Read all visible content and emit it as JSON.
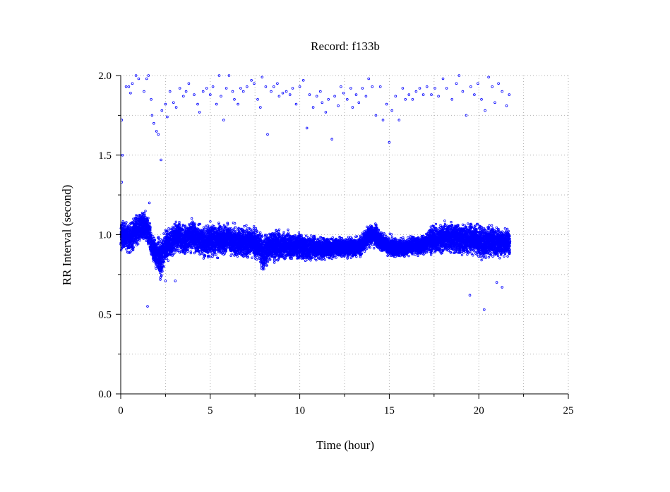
{
  "chart_data": {
    "type": "scatter",
    "title": "Record:  f133b",
    "xlabel": "Time (hour)",
    "ylabel": "RR Interval (second)",
    "xlim": [
      0,
      25
    ],
    "ylim": [
      0.0,
      2.0
    ],
    "x_ticks": [
      0,
      5,
      10,
      15,
      20,
      25
    ],
    "x_tick_labels": [
      "0",
      "5",
      "10",
      "15",
      "20",
      "25"
    ],
    "y_ticks": [
      0.0,
      0.5,
      1.0,
      1.5,
      2.0
    ],
    "y_tick_labels": [
      "0.0",
      "0.5",
      "1.0",
      "1.5",
      "2.0"
    ],
    "grid": true,
    "colors": {
      "marker": "#0000ff",
      "grid": "#b0b0b0",
      "axis": "#000000"
    },
    "series": [
      {
        "outliers": [
          [
            0.05,
            1.72
          ],
          [
            0.1,
            1.5
          ],
          [
            0.05,
            1.33
          ],
          [
            0.3,
            1.93
          ],
          [
            0.45,
            1.93
          ],
          [
            0.55,
            1.89
          ],
          [
            0.65,
            1.95
          ],
          [
            0.85,
            2.0
          ],
          [
            1.0,
            1.98
          ],
          [
            1.3,
            1.9
          ],
          [
            1.45,
            1.98
          ],
          [
            1.55,
            2.0
          ],
          [
            1.7,
            1.85
          ],
          [
            1.75,
            1.75
          ],
          [
            1.85,
            1.7
          ],
          [
            2.0,
            1.65
          ],
          [
            2.1,
            1.63
          ],
          [
            2.25,
            1.47
          ],
          [
            2.3,
            1.78
          ],
          [
            2.5,
            1.82
          ],
          [
            2.6,
            1.74
          ],
          [
            2.75,
            1.9
          ],
          [
            2.95,
            1.83
          ],
          [
            3.1,
            1.8
          ],
          [
            3.3,
            1.92
          ],
          [
            3.5,
            1.87
          ],
          [
            3.65,
            1.9
          ],
          [
            3.8,
            1.95
          ],
          [
            4.1,
            1.88
          ],
          [
            4.3,
            1.82
          ],
          [
            4.4,
            1.77
          ],
          [
            4.6,
            1.9
          ],
          [
            4.8,
            1.92
          ],
          [
            5.0,
            1.88
          ],
          [
            5.15,
            1.93
          ],
          [
            5.35,
            1.82
          ],
          [
            5.5,
            2.0
          ],
          [
            5.6,
            1.87
          ],
          [
            5.75,
            1.72
          ],
          [
            5.9,
            1.92
          ],
          [
            6.05,
            2.0
          ],
          [
            6.25,
            1.9
          ],
          [
            6.35,
            1.85
          ],
          [
            6.55,
            1.82
          ],
          [
            6.7,
            1.92
          ],
          [
            6.85,
            1.9
          ],
          [
            7.05,
            1.93
          ],
          [
            7.3,
            1.97
          ],
          [
            7.45,
            1.95
          ],
          [
            7.65,
            1.85
          ],
          [
            7.8,
            1.8
          ],
          [
            7.9,
            1.99
          ],
          [
            8.1,
            1.93
          ],
          [
            8.2,
            1.63
          ],
          [
            8.4,
            1.9
          ],
          [
            8.55,
            1.93
          ],
          [
            8.75,
            1.95
          ],
          [
            8.85,
            1.87
          ],
          [
            9.05,
            1.89
          ],
          [
            9.25,
            1.9
          ],
          [
            9.45,
            1.88
          ],
          [
            9.6,
            1.92
          ],
          [
            9.8,
            1.82
          ],
          [
            10.0,
            1.93
          ],
          [
            10.2,
            1.97
          ],
          [
            10.4,
            1.67
          ],
          [
            10.55,
            1.88
          ],
          [
            10.75,
            1.8
          ],
          [
            10.95,
            1.87
          ],
          [
            11.15,
            1.9
          ],
          [
            11.25,
            1.83
          ],
          [
            11.45,
            1.77
          ],
          [
            11.6,
            1.85
          ],
          [
            11.8,
            1.6
          ],
          [
            11.95,
            1.87
          ],
          [
            12.15,
            1.81
          ],
          [
            12.3,
            1.93
          ],
          [
            12.45,
            1.89
          ],
          [
            12.65,
            1.85
          ],
          [
            12.85,
            1.92
          ],
          [
            12.95,
            1.8
          ],
          [
            13.15,
            1.88
          ],
          [
            13.3,
            1.83
          ],
          [
            13.5,
            1.92
          ],
          [
            13.7,
            1.87
          ],
          [
            13.85,
            1.98
          ],
          [
            14.05,
            1.93
          ],
          [
            14.25,
            1.75
          ],
          [
            14.5,
            1.93
          ],
          [
            14.65,
            1.72
          ],
          [
            14.85,
            1.82
          ],
          [
            15.0,
            1.58
          ],
          [
            15.15,
            1.78
          ],
          [
            15.35,
            1.87
          ],
          [
            15.55,
            1.72
          ],
          [
            15.75,
            1.92
          ],
          [
            15.9,
            1.85
          ],
          [
            16.1,
            1.88
          ],
          [
            16.3,
            1.85
          ],
          [
            16.5,
            1.9
          ],
          [
            16.7,
            1.92
          ],
          [
            16.9,
            1.88
          ],
          [
            17.1,
            1.93
          ],
          [
            17.35,
            1.88
          ],
          [
            17.55,
            1.92
          ],
          [
            17.75,
            1.87
          ],
          [
            18.0,
            1.98
          ],
          [
            18.2,
            1.92
          ],
          [
            18.5,
            1.85
          ],
          [
            18.75,
            1.95
          ],
          [
            18.9,
            2.0
          ],
          [
            19.1,
            1.9
          ],
          [
            19.3,
            1.75
          ],
          [
            19.55,
            1.93
          ],
          [
            19.75,
            1.88
          ],
          [
            19.95,
            1.95
          ],
          [
            20.15,
            1.85
          ],
          [
            20.35,
            1.78
          ],
          [
            20.55,
            1.99
          ],
          [
            20.75,
            1.93
          ],
          [
            20.9,
            1.83
          ],
          [
            21.1,
            1.95
          ],
          [
            21.3,
            1.9
          ],
          [
            21.55,
            1.81
          ],
          [
            21.7,
            1.88
          ],
          [
            1.6,
            1.2
          ],
          [
            2.5,
            0.71
          ],
          [
            3.05,
            0.71
          ],
          [
            1.5,
            0.55
          ],
          [
            19.5,
            0.62
          ],
          [
            20.3,
            0.53
          ],
          [
            21.0,
            0.7
          ],
          [
            21.3,
            0.67
          ]
        ],
        "band": [
          [
            0.0,
            0.99,
            0.12
          ],
          [
            0.25,
            1.0,
            0.1
          ],
          [
            0.5,
            0.98,
            0.13
          ],
          [
            0.75,
            1.01,
            0.12
          ],
          [
            1.0,
            1.03,
            0.12
          ],
          [
            1.25,
            1.05,
            0.12
          ],
          [
            1.5,
            1.04,
            0.12
          ],
          [
            1.75,
            0.92,
            0.1
          ],
          [
            2.0,
            0.88,
            0.14
          ],
          [
            2.25,
            0.85,
            0.16
          ],
          [
            2.5,
            0.93,
            0.12
          ],
          [
            2.75,
            0.95,
            0.12
          ],
          [
            3.0,
            0.97,
            0.12
          ],
          [
            3.25,
            0.99,
            0.12
          ],
          [
            3.5,
            0.96,
            0.12
          ],
          [
            3.75,
            0.98,
            0.12
          ],
          [
            4.0,
            1.0,
            0.13
          ],
          [
            4.25,
            0.97,
            0.12
          ],
          [
            4.5,
            0.96,
            0.12
          ],
          [
            4.75,
            0.95,
            0.12
          ],
          [
            5.0,
            0.97,
            0.13
          ],
          [
            5.25,
            0.96,
            0.12
          ],
          [
            5.5,
            0.97,
            0.12
          ],
          [
            5.75,
            0.96,
            0.12
          ],
          [
            6.0,
            0.98,
            0.12
          ],
          [
            6.25,
            0.96,
            0.12
          ],
          [
            6.5,
            0.95,
            0.12
          ],
          [
            6.75,
            0.96,
            0.12
          ],
          [
            7.0,
            0.95,
            0.12
          ],
          [
            7.25,
            0.96,
            0.12
          ],
          [
            7.5,
            0.94,
            0.12
          ],
          [
            7.75,
            0.92,
            0.12
          ],
          [
            8.0,
            0.88,
            0.14
          ],
          [
            8.25,
            0.92,
            0.12
          ],
          [
            8.5,
            0.94,
            0.12
          ],
          [
            8.75,
            0.93,
            0.12
          ],
          [
            9.0,
            0.93,
            0.11
          ],
          [
            9.25,
            0.94,
            0.11
          ],
          [
            9.5,
            0.92,
            0.11
          ],
          [
            9.75,
            0.93,
            0.1
          ],
          [
            10.0,
            0.93,
            0.1
          ],
          [
            10.25,
            0.92,
            0.1
          ],
          [
            10.5,
            0.91,
            0.1
          ],
          [
            10.75,
            0.92,
            0.09
          ],
          [
            11.0,
            0.92,
            0.09
          ],
          [
            11.25,
            0.91,
            0.09
          ],
          [
            11.5,
            0.92,
            0.08
          ],
          [
            11.75,
            0.91,
            0.08
          ],
          [
            12.0,
            0.92,
            0.08
          ],
          [
            12.25,
            0.92,
            0.08
          ],
          [
            12.5,
            0.92,
            0.08
          ],
          [
            12.75,
            0.92,
            0.08
          ],
          [
            13.0,
            0.92,
            0.08
          ],
          [
            13.25,
            0.92,
            0.08
          ],
          [
            13.5,
            0.94,
            0.08
          ],
          [
            13.75,
            0.98,
            0.08
          ],
          [
            14.0,
            1.0,
            0.08
          ],
          [
            14.25,
            0.99,
            0.09
          ],
          [
            14.5,
            0.96,
            0.08
          ],
          [
            14.75,
            0.94,
            0.08
          ],
          [
            15.0,
            0.93,
            0.08
          ],
          [
            15.25,
            0.92,
            0.08
          ],
          [
            15.5,
            0.92,
            0.07
          ],
          [
            15.75,
            0.92,
            0.07
          ],
          [
            16.0,
            0.92,
            0.07
          ],
          [
            16.25,
            0.93,
            0.07
          ],
          [
            16.5,
            0.93,
            0.07
          ],
          [
            16.75,
            0.93,
            0.07
          ],
          [
            17.0,
            0.94,
            0.08
          ],
          [
            17.25,
            0.97,
            0.1
          ],
          [
            17.5,
            0.97,
            0.11
          ],
          [
            17.75,
            0.97,
            0.11
          ],
          [
            18.0,
            0.98,
            0.12
          ],
          [
            18.25,
            0.98,
            0.12
          ],
          [
            18.5,
            0.98,
            0.12
          ],
          [
            18.75,
            0.98,
            0.12
          ],
          [
            19.0,
            0.97,
            0.12
          ],
          [
            19.25,
            0.97,
            0.12
          ],
          [
            19.5,
            0.97,
            0.12
          ],
          [
            19.75,
            0.98,
            0.12
          ],
          [
            20.0,
            0.96,
            0.13
          ],
          [
            20.25,
            0.95,
            0.13
          ],
          [
            20.5,
            0.95,
            0.12
          ],
          [
            20.75,
            0.96,
            0.12
          ],
          [
            21.0,
            0.95,
            0.12
          ],
          [
            21.25,
            0.95,
            0.11
          ],
          [
            21.5,
            0.95,
            0.11
          ],
          [
            21.75,
            0.95,
            0.1
          ]
        ]
      }
    ]
  }
}
